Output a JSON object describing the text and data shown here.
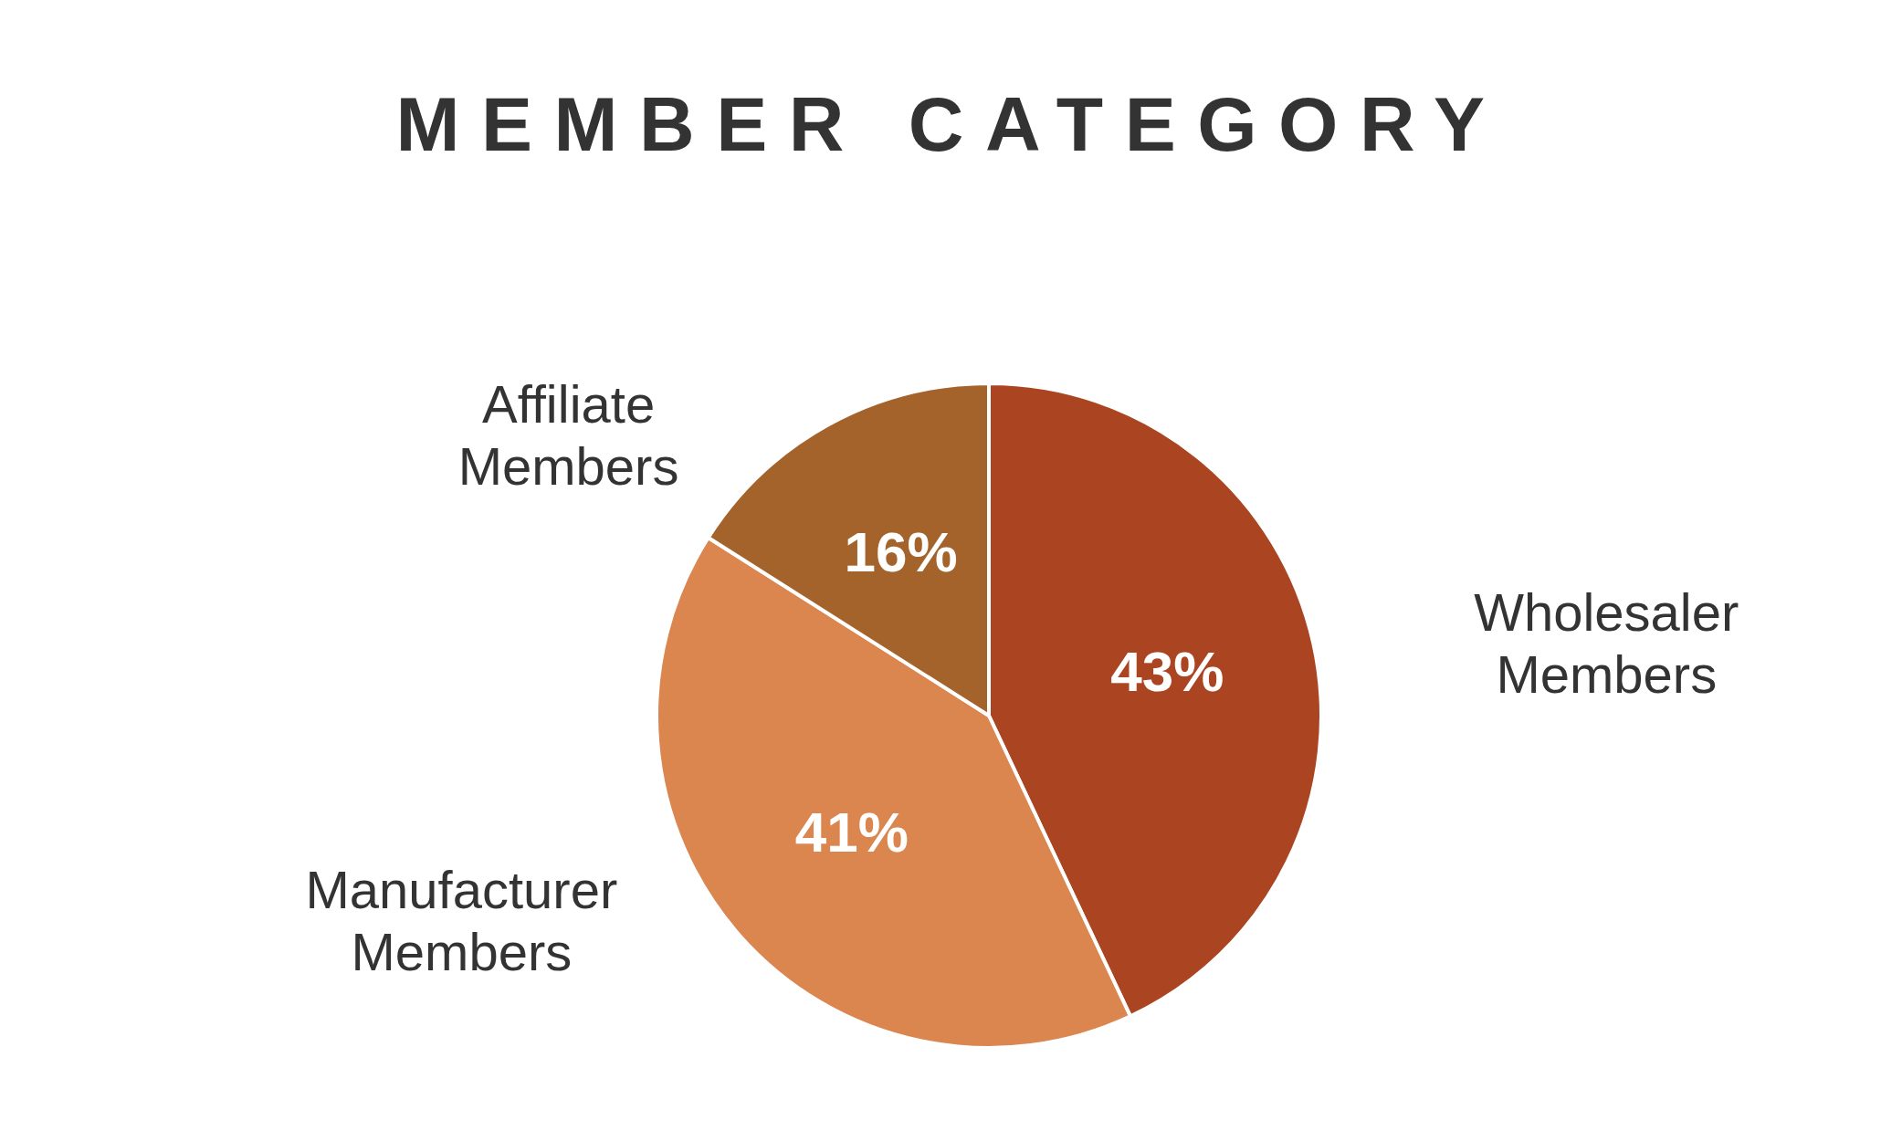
{
  "chart_data": {
    "type": "pie",
    "title": "MEMBER CATEGORY",
    "categories": [
      "Wholesaler Members",
      "Manufacturer Members",
      "Affiliate Members"
    ],
    "values": [
      43,
      41,
      16
    ],
    "colors": [
      "#ab4420",
      "#db854f",
      "#a5632c"
    ],
    "value_labels": [
      "43%",
      "41%",
      "16%"
    ],
    "legend": false
  }
}
